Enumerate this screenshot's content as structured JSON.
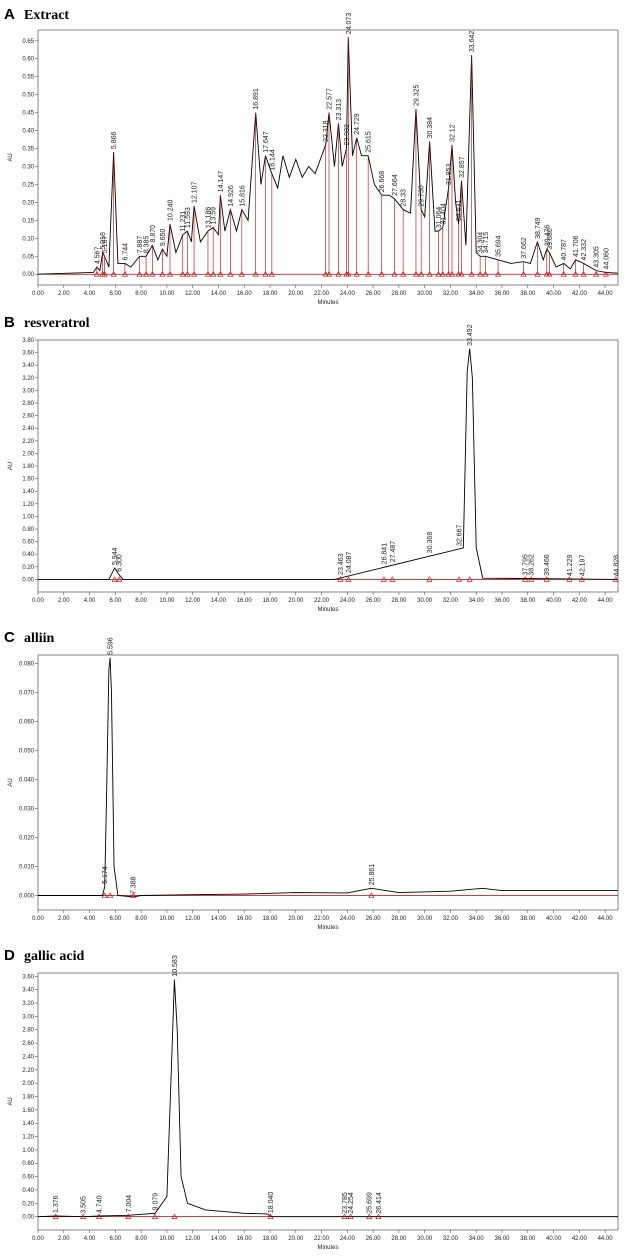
{
  "chart_data": [
    {
      "type": "line",
      "panel": "A",
      "title": "Extract",
      "xlabel": "Minutes",
      "ylabel": "AU",
      "color": "#000000",
      "peak_color": "#c00000",
      "drop_lines": true,
      "x": [
        0,
        4.3,
        4.567,
        4.8,
        5.018,
        5.167,
        5.5,
        5.866,
        6.2,
        6.744,
        7.2,
        7.887,
        8.385,
        8.87,
        9.3,
        9.65,
        10.0,
        10.24,
        10.7,
        11.231,
        11.593,
        11.9,
        12.107,
        12.6,
        13.186,
        13.59,
        14.0,
        14.147,
        14.5,
        14.926,
        15.4,
        15.816,
        16.3,
        16.891,
        17.3,
        17.647,
        18.144,
        18.6,
        19.0,
        19.5,
        20.0,
        20.5,
        21.0,
        21.5,
        22.318,
        22.577,
        23.0,
        23.313,
        23.6,
        23.932,
        24.073,
        24.4,
        24.729,
        25.1,
        25.615,
        26.1,
        26.668,
        27.26,
        27.664,
        28.33,
        28.9,
        29.325,
        29.73,
        30.0,
        30.384,
        30.8,
        31.064,
        31.404,
        31.853,
        32.12,
        32.4,
        32.631,
        32.857,
        33.2,
        33.642,
        34.0,
        34.304,
        34.715,
        35.694,
        36.7,
        37.662,
        38.2,
        38.749,
        39.2,
        39.476,
        39.68,
        40.2,
        40.787,
        41.3,
        41.706,
        42.332,
        43.305,
        44.06,
        45
      ],
      "values": [
        0,
        0.005,
        0.02,
        0.01,
        0.06,
        0.05,
        0.02,
        0.34,
        0.03,
        0.03,
        0.02,
        0.05,
        0.05,
        0.08,
        0.04,
        0.07,
        0.05,
        0.14,
        0.06,
        0.11,
        0.12,
        0.09,
        0.19,
        0.09,
        0.12,
        0.13,
        0.11,
        0.22,
        0.12,
        0.18,
        0.12,
        0.18,
        0.15,
        0.45,
        0.25,
        0.33,
        0.28,
        0.24,
        0.33,
        0.27,
        0.32,
        0.27,
        0.3,
        0.28,
        0.36,
        0.45,
        0.3,
        0.42,
        0.3,
        0.35,
        0.66,
        0.33,
        0.38,
        0.33,
        0.33,
        0.25,
        0.22,
        0.22,
        0.21,
        0.18,
        0.17,
        0.46,
        0.18,
        0.16,
        0.37,
        0.12,
        0.12,
        0.13,
        0.24,
        0.36,
        0.2,
        0.14,
        0.26,
        0.08,
        0.61,
        0.06,
        0.05,
        0.05,
        0.04,
        0.03,
        0.035,
        0.03,
        0.09,
        0.04,
        0.07,
        0.06,
        0.02,
        0.03,
        0.015,
        0.04,
        0.03,
        0.01,
        0.005,
        0.003
      ],
      "peaks": [
        4.567,
        5.018,
        5.167,
        5.866,
        6.744,
        7.887,
        8.385,
        {
          "value": 8.87,
          "label": "8.870"
        },
        {
          "value": 9.65,
          "label": "9.650"
        },
        {
          "value": 10.24,
          "label": "10.240"
        },
        11.231,
        11.593,
        12.107,
        13.186,
        13.59,
        14.147,
        14.926,
        15.816,
        16.891,
        17.647,
        18.144,
        22.318,
        22.577,
        23.313,
        23.932,
        24.073,
        24.729,
        25.615,
        26.668,
        27.664,
        28.33,
        29.325,
        {
          "value": 29.73,
          "label": "29.730"
        },
        30.384,
        31.064,
        31.404,
        31.853,
        32.12,
        32.631,
        32.857,
        33.642,
        34.304,
        34.715,
        35.694,
        37.662,
        38.749,
        39.476,
        {
          "value": 39.68,
          "label": "39.680"
        },
        40.787,
        41.706,
        42.332,
        43.305,
        {
          "value": 44.06,
          "label": "44.060"
        }
      ],
      "xlim": [
        0,
        45
      ],
      "ylim": [
        -0.03,
        0.68
      ],
      "xticks": [
        {
          "value": 0,
          "label": "0.00"
        },
        {
          "value": 2,
          "label": "2.00"
        },
        {
          "value": 4,
          "label": "4.00"
        },
        {
          "value": 6,
          "label": "6.00"
        },
        {
          "value": 8,
          "label": "8.00"
        },
        {
          "value": 10,
          "label": "10.00"
        },
        {
          "value": 12,
          "label": "12.00"
        },
        {
          "value": 14,
          "label": "14.00"
        },
        {
          "value": 16,
          "label": "16.00"
        },
        {
          "value": 18,
          "label": "18.00"
        },
        {
          "value": 20,
          "label": "20.00"
        },
        {
          "value": 22,
          "label": "22.00"
        },
        {
          "value": 24,
          "label": "24.00"
        },
        {
          "value": 26,
          "label": "26.00"
        },
        {
          "value": 28,
          "label": "28.00"
        },
        {
          "value": 30,
          "label": "30.00"
        },
        {
          "value": 32,
          "label": "32.00"
        },
        {
          "value": 34,
          "label": "34.00"
        },
        {
          "value": 36,
          "label": "36.00"
        },
        {
          "value": 38,
          "label": "38.00"
        },
        {
          "value": 40,
          "label": "40.00"
        },
        {
          "value": 42,
          "label": "42.00"
        },
        {
          "value": 44,
          "label": "44.00"
        }
      ],
      "yticks": [
        {
          "value": 0,
          "label": "0.00"
        },
        0.05,
        {
          "value": 0.1,
          "label": "0.10"
        },
        0.15,
        {
          "value": 0.2,
          "label": "0.20"
        },
        0.25,
        {
          "value": 0.3,
          "label": "0.30"
        },
        0.35,
        {
          "value": 0.4,
          "label": "0.40"
        },
        0.45,
        {
          "value": 0.5,
          "label": "0.50"
        },
        0.55,
        {
          "value": 0.6,
          "label": "0.60"
        },
        0.65
      ]
    },
    {
      "type": "line",
      "panel": "B",
      "title": "resveratrol",
      "xlabel": "Minutes",
      "ylabel": "AU",
      "color": "#000000",
      "peak_color": "#c00000",
      "drop_lines": false,
      "x": [
        0,
        5.5,
        5.944,
        6.2,
        6.6,
        23.0,
        33.0,
        33.3,
        33.492,
        33.7,
        34.0,
        34.5,
        45
      ],
      "values": [
        0,
        0,
        0.18,
        0.1,
        0,
        0,
        0.5,
        3.3,
        3.66,
        3.2,
        0.5,
        0.02,
        0
      ],
      "peaks": [
        5.944,
        {
          "value": 6.3,
          "label": "6.300"
        },
        23.463,
        24.087,
        26.841,
        27.487,
        30.368,
        32.667,
        33.492,
        37.795,
        38.262,
        39.466,
        41.229,
        42.197,
        44.828
      ],
      "xlim": [
        0,
        45
      ],
      "ylim": [
        -0.2,
        3.8
      ],
      "xticks": [
        {
          "value": 0,
          "label": "0.00"
        },
        {
          "value": 2,
          "label": "2.00"
        },
        {
          "value": 4,
          "label": "4.00"
        },
        {
          "value": 6,
          "label": "6.00"
        },
        {
          "value": 8,
          "label": "8.00"
        },
        {
          "value": 10,
          "label": "10.00"
        },
        {
          "value": 12,
          "label": "12.00"
        },
        {
          "value": 14,
          "label": "14.00"
        },
        {
          "value": 16,
          "label": "16.00"
        },
        {
          "value": 18,
          "label": "18.00"
        },
        {
          "value": 20,
          "label": "20.00"
        },
        {
          "value": 22,
          "label": "22.00"
        },
        {
          "value": 24,
          "label": "24.00"
        },
        {
          "value": 26,
          "label": "26.00"
        },
        {
          "value": 28,
          "label": "28.00"
        },
        {
          "value": 30,
          "label": "30.00"
        },
        {
          "value": 32,
          "label": "32.00"
        },
        {
          "value": 34,
          "label": "34.00"
        },
        {
          "value": 36,
          "label": "36.00"
        },
        {
          "value": 38,
          "label": "38.00"
        },
        {
          "value": 40,
          "label": "40.00"
        },
        {
          "value": 42,
          "label": "42.00"
        },
        {
          "value": 44,
          "label": "44.00"
        }
      ],
      "yticks": [
        {
          "value": 0,
          "label": "0.00"
        },
        {
          "value": 0.2,
          "label": "0.20"
        },
        {
          "value": 0.4,
          "label": "0.40"
        },
        {
          "value": 0.6,
          "label": "0.60"
        },
        {
          "value": 0.8,
          "label": "0.80"
        },
        {
          "value": 1,
          "label": "1.00"
        },
        {
          "value": 1.2,
          "label": "1.20"
        },
        {
          "value": 1.4,
          "label": "1.40"
        },
        {
          "value": 1.6,
          "label": "1.60"
        },
        {
          "value": 1.8,
          "label": "1.80"
        },
        {
          "value": 2,
          "label": "2.00"
        },
        {
          "value": 2.2,
          "label": "2.20"
        },
        {
          "value": 2.4,
          "label": "2.40"
        },
        {
          "value": 2.6,
          "label": "2.60"
        },
        {
          "value": 2.8,
          "label": "2.80"
        },
        {
          "value": 3,
          "label": "3.00"
        },
        {
          "value": 3.2,
          "label": "3.20"
        },
        {
          "value": 3.4,
          "label": "3.40"
        },
        {
          "value": 3.6,
          "label": "3.60"
        },
        {
          "value": 3.8,
          "label": "3.80"
        }
      ]
    },
    {
      "type": "line",
      "panel": "C",
      "title": "alliin",
      "xlabel": "Minutes",
      "ylabel": "AU",
      "color": "#000000",
      "peak_color": "#c00000",
      "drop_lines": false,
      "x": [
        0,
        5.0,
        5.174,
        5.3,
        5.5,
        5.596,
        5.7,
        5.9,
        6.2,
        7.388,
        8,
        12,
        16,
        20,
        24,
        25.861,
        28,
        32,
        34.5,
        36,
        45
      ],
      "values": [
        0,
        0,
        0.003,
        0.03,
        0.078,
        0.082,
        0.07,
        0.01,
        0,
        -0.0005,
        0,
        0.0003,
        0.0005,
        0.001,
        0.0009,
        0.0025,
        0.001,
        0.0015,
        0.0025,
        0.0017,
        0.0017
      ],
      "peaks": [
        5.174,
        5.596,
        7.388,
        25.861
      ],
      "xlim": [
        0,
        45
      ],
      "ylim": [
        -0.005,
        0.083
      ],
      "xticks": [
        {
          "value": 0,
          "label": "0.00"
        },
        {
          "value": 2,
          "label": "2.00"
        },
        {
          "value": 4,
          "label": "4.00"
        },
        {
          "value": 6,
          "label": "6.00"
        },
        {
          "value": 8,
          "label": "8.00"
        },
        {
          "value": 10,
          "label": "10.00"
        },
        {
          "value": 12,
          "label": "12.00"
        },
        {
          "value": 14,
          "label": "14.00"
        },
        {
          "value": 16,
          "label": "16.00"
        },
        {
          "value": 18,
          "label": "18.00"
        },
        {
          "value": 20,
          "label": "20.00"
        },
        {
          "value": 22,
          "label": "22.00"
        },
        {
          "value": 24,
          "label": "24.00"
        },
        {
          "value": 26,
          "label": "26.00"
        },
        {
          "value": 28,
          "label": "28.00"
        },
        {
          "value": 30,
          "label": "30.00"
        },
        {
          "value": 32,
          "label": "32.00"
        },
        {
          "value": 34,
          "label": "34.00"
        },
        {
          "value": 36,
          "label": "36.00"
        },
        {
          "value": 38,
          "label": "38.00"
        },
        {
          "value": 40,
          "label": "40.00"
        },
        {
          "value": 42,
          "label": "42.00"
        },
        {
          "value": 44,
          "label": "44.00"
        }
      ],
      "yticks": [
        {
          "value": 0,
          "label": "0.000"
        },
        {
          "value": 0.01,
          "label": "0.010"
        },
        {
          "value": 0.02,
          "label": "0.020"
        },
        {
          "value": 0.03,
          "label": "0.030"
        },
        {
          "value": 0.04,
          "label": "0.040"
        },
        {
          "value": 0.05,
          "label": "0.050"
        },
        {
          "value": 0.06,
          "label": "0.060"
        },
        {
          "value": 0.07,
          "label": "0.070"
        },
        {
          "value": 0.08,
          "label": "0.080"
        }
      ]
    },
    {
      "type": "line",
      "panel": "D",
      "title": "gallic acid",
      "xlabel": "Minutes",
      "ylabel": "AU",
      "color": "#000000",
      "peak_color": "#c00000",
      "drop_lines": false,
      "x": [
        0,
        1.376,
        3.505,
        4.74,
        7.004,
        9.079,
        10.0,
        10.4,
        10.583,
        10.8,
        11.1,
        11.6,
        13,
        16,
        17.8,
        18.1,
        45
      ],
      "values": [
        0,
        0.01,
        0,
        0.01,
        0.02,
        0.05,
        0.3,
        2.5,
        3.55,
        2.8,
        0.6,
        0.2,
        0.1,
        0.05,
        0.04,
        0,
        0
      ],
      "peaks": [
        1.376,
        3.505,
        {
          "value": 4.74,
          "label": "4.740"
        },
        7.004,
        9.079,
        10.583,
        {
          "value": 18.04,
          "label": "18.040"
        },
        23.785,
        24.254,
        25.699,
        26.414
      ],
      "xlim": [
        0,
        45
      ],
      "ylim": [
        -0.2,
        3.65
      ],
      "xticks": [
        {
          "value": 0,
          "label": "0.00"
        },
        {
          "value": 2,
          "label": "2.00"
        },
        {
          "value": 4,
          "label": "4.00"
        },
        {
          "value": 6,
          "label": "6.00"
        },
        {
          "value": 8,
          "label": "8.00"
        },
        {
          "value": 10,
          "label": "10.00"
        },
        {
          "value": 12,
          "label": "12.00"
        },
        {
          "value": 14,
          "label": "14.00"
        },
        {
          "value": 16,
          "label": "16.00"
        },
        {
          "value": 18,
          "label": "18.00"
        },
        {
          "value": 20,
          "label": "20.00"
        },
        {
          "value": 22,
          "label": "22.00"
        },
        {
          "value": 24,
          "label": "24.00"
        },
        {
          "value": 26,
          "label": "26.00"
        },
        {
          "value": 28,
          "label": "28.00"
        },
        {
          "value": 30,
          "label": "30.00"
        },
        {
          "value": 32,
          "label": "32.00"
        },
        {
          "value": 34,
          "label": "34.00"
        },
        {
          "value": 36,
          "label": "36.00"
        },
        {
          "value": 38,
          "label": "38.00"
        },
        {
          "value": 40,
          "label": "40.00"
        },
        {
          "value": 42,
          "label": "42.00"
        },
        {
          "value": 44,
          "label": "44.00"
        }
      ],
      "yticks": [
        {
          "value": 0,
          "label": "0.00"
        },
        {
          "value": 0.2,
          "label": "0.20"
        },
        {
          "value": 0.4,
          "label": "0.40"
        },
        {
          "value": 0.6,
          "label": "0.60"
        },
        {
          "value": 0.8,
          "label": "0.80"
        },
        {
          "value": 1,
          "label": "1.00"
        },
        {
          "value": 1.2,
          "label": "1.20"
        },
        {
          "value": 1.4,
          "label": "1.40"
        },
        {
          "value": 1.6,
          "label": "1.60"
        },
        {
          "value": 1.8,
          "label": "1.80"
        },
        {
          "value": 2,
          "label": "2.00"
        },
        {
          "value": 2.2,
          "label": "2.20"
        },
        {
          "value": 2.4,
          "label": "2.40"
        },
        {
          "value": 2.6,
          "label": "2.60"
        },
        {
          "value": 2.8,
          "label": "2.80"
        },
        {
          "value": 3,
          "label": "3.00"
        },
        {
          "value": 3.2,
          "label": "3.20"
        },
        {
          "value": 3.4,
          "label": "3.40"
        },
        {
          "value": 3.6,
          "label": "3.60"
        }
      ]
    }
  ]
}
